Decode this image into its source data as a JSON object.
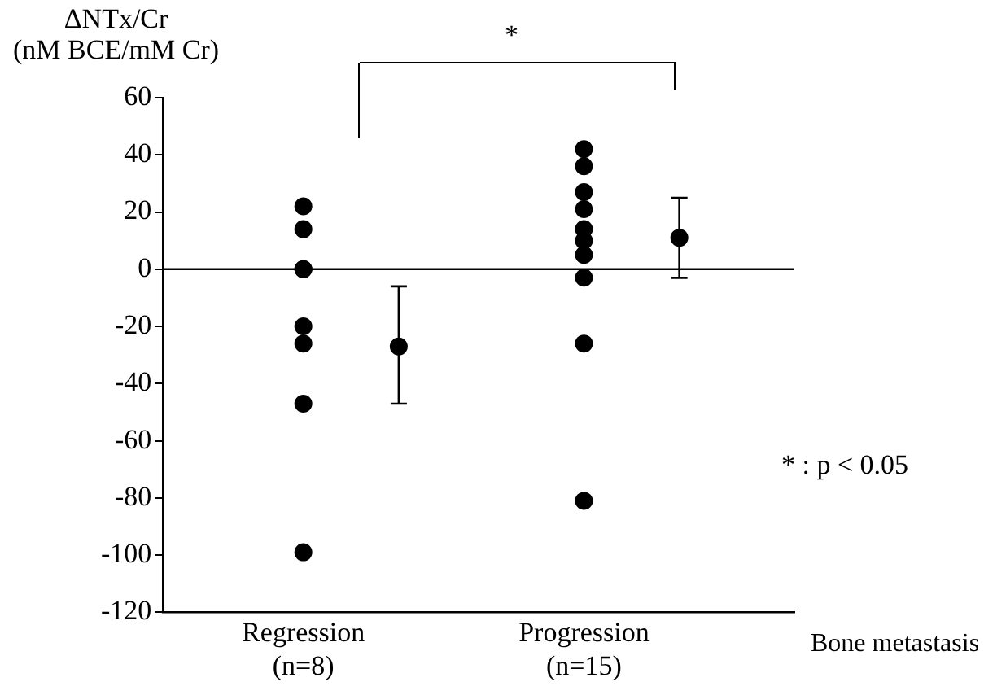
{
  "chart_data": {
    "type": "scatter",
    "ylabel": "ΔNTx/Cr\n(nM BCE/mM Cr)",
    "xlabel": "Bone metastasis",
    "categories": [
      "Regression\n(n=8)",
      "Progression\n(n=15)"
    ],
    "series": [
      {
        "type": "scatter",
        "color": "#000000",
        "x": [
          "Regression\n(n=8)",
          "Regression\n(n=8)",
          "Regression\n(n=8)",
          "Regression\n(n=8)",
          "Regression\n(n=8)",
          "Regression\n(n=8)",
          "Regression\n(n=8)",
          "Regression\n(n=8)",
          "Progression\n(n=15)",
          "Progression\n(n=15)",
          "Progression\n(n=15)",
          "Progression\n(n=15)",
          "Progression\n(n=15)",
          "Progression\n(n=15)",
          "Progression\n(n=15)",
          "Progression\n(n=15)",
          "Progression\n(n=15)",
          "Progression\n(n=15)",
          "Progression\n(n=15)",
          "Progression\n(n=15)"
        ],
        "values": [
          22,
          14,
          0,
          0,
          -20,
          -26,
          -47,
          -99,
          42,
          36,
          27,
          21,
          null,
          14,
          10,
          null,
          5,
          -3,
          -26,
          -81
        ]
      },
      {
        "type": "scatter",
        "color": "#000000",
        "x": [
          "Regression\n(n=8)",
          "Progression\n(n=15)"
        ],
        "values": [
          -27,
          11
        ],
        "errors": [
          [
            -47,
            -6
          ],
          [
            -3,
            25
          ]
        ]
      }
    ],
    "ylim": [
      -120,
      60
    ],
    "yticks": [
      -120,
      -100,
      -80,
      -60,
      -40,
      -20,
      0,
      20,
      40,
      60
    ],
    "ref_lines": [
      {
        "axis": "y",
        "value": 0,
        "color": "#000000"
      }
    ],
    "annotations": [
      "*",
      "* : p < 0.05"
    ],
    "marker": "circle",
    "grid": false,
    "legend": false
  }
}
